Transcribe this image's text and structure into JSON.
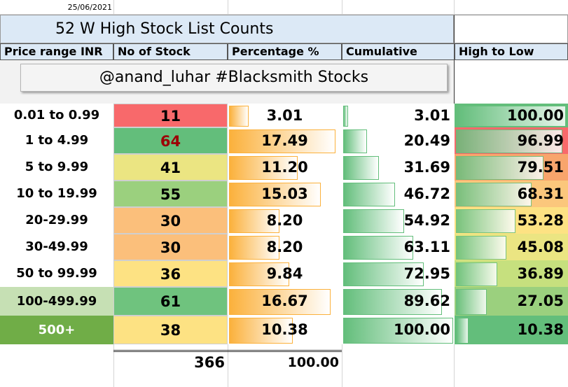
{
  "date": "25/06/2021",
  "title": "52 W High Stock List Counts",
  "banner": "@anand_luhar #Blacksmith Stocks",
  "headers": {
    "range": "Price range INR",
    "count": "No of Stock",
    "pct": "Percentage %",
    "cum": "Cumulative",
    "hl": "High to Low"
  },
  "colors": {
    "red": "#f8696b",
    "green_dark": "#63be7b",
    "green_mid": "#9bd07e",
    "yellow": "#ebe582",
    "orange": "#fbbf7b",
    "light_yellow": "#fde283",
    "olive_light": "#c6e0b4",
    "olive_dark": "#70ad47",
    "bar_orange": "#fbb13c",
    "bar_green": "#63be7b"
  },
  "rows": [
    {
      "range": "0.01 to 0.99",
      "count": "11",
      "pct": "3.01",
      "cum": "3.01",
      "hl": "100.00",
      "count_color": "#f8696b"
    },
    {
      "range": "1 to 4.99",
      "count": "64",
      "pct": "17.49",
      "cum": "20.49",
      "hl": "96.99",
      "count_color": "#63be7b"
    },
    {
      "range": "5 to 9.99",
      "count": "41",
      "pct": "11.20",
      "cum": "31.69",
      "hl": "79.51",
      "count_color": "#ebe582"
    },
    {
      "range": "10 to 19.99",
      "count": "55",
      "pct": "15.03",
      "cum": "46.72",
      "hl": "68.31",
      "count_color": "#9bd07e"
    },
    {
      "range": "20-29.99",
      "count": "30",
      "pct": "8.20",
      "cum": "54.92",
      "hl": "53.28",
      "count_color": "#fbbf7b"
    },
    {
      "range": "30-49.99",
      "count": "30",
      "pct": "8.20",
      "cum": "63.11",
      "hl": "45.08",
      "count_color": "#fbbf7b"
    },
    {
      "range": "50 to 99.99",
      "count": "36",
      "pct": "9.84",
      "cum": "72.95",
      "hl": "36.89",
      "count_color": "#fde283"
    },
    {
      "range": "100-499.99",
      "count": "61",
      "pct": "16.67",
      "cum": "89.62",
      "hl": "27.05",
      "count_color": "#6fc37e"
    },
    {
      "range": "500+",
      "count": "38",
      "pct": "10.38",
      "cum": "100.00",
      "hl": "10.38",
      "count_color": "#fde283"
    }
  ],
  "totals": {
    "count": "366",
    "pct": "100.00"
  }
}
